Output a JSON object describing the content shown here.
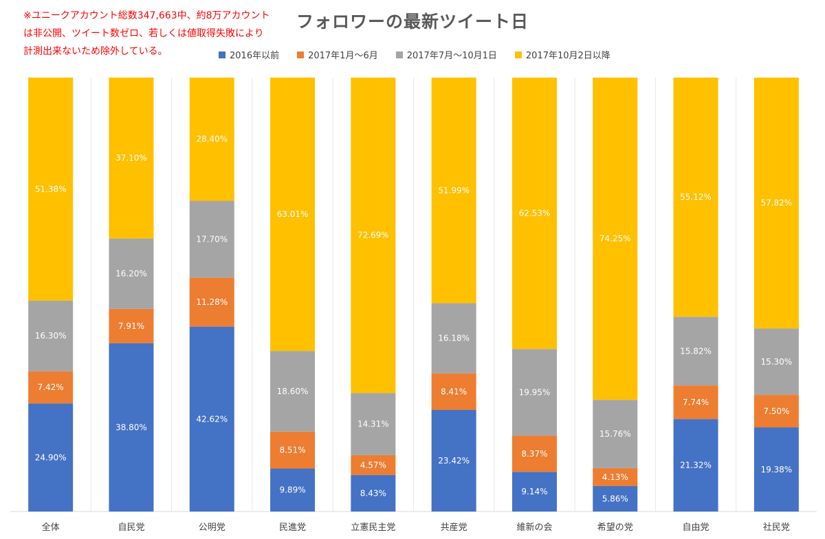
{
  "chart_data": {
    "type": "bar",
    "stacked": true,
    "title": "フォロワーの最新ツイート日",
    "annotation": "※ユニークアカウント総数347,663中、約8万アカウント\nは非公開、ツイート数ゼロ、若しくは値取得失敗により\n計測出来ないため除外している。",
    "legend_position": "top",
    "ylim": [
      0,
      100
    ],
    "grid": false,
    "categories": [
      "全体",
      "自民党",
      "公明党",
      "民進党",
      "立憲民主党",
      "共産党",
      "維新の会",
      "希望の党",
      "自由党",
      "社民党"
    ],
    "series": [
      {
        "name": "2016年以前",
        "color": "#4472c4",
        "values": [
          24.9,
          38.8,
          42.62,
          9.89,
          8.43,
          23.42,
          9.14,
          5.86,
          21.32,
          19.38
        ],
        "labels": [
          "24.90%",
          "38.80%",
          "42.62%",
          "9.89%",
          "8.43%",
          "23.42%",
          "9.14%",
          "5.86%",
          "21.32%",
          "19.38%"
        ]
      },
      {
        "name": "2017年1月～6月",
        "color": "#ed7d31",
        "values": [
          7.42,
          7.91,
          11.28,
          8.51,
          4.57,
          8.41,
          8.37,
          4.13,
          7.74,
          7.5
        ],
        "labels": [
          "7.42%",
          "7.91%",
          "11.28%",
          "8.51%",
          "4.57%",
          "8.41%",
          "8.37%",
          "4.13%",
          "7.74%",
          "7.50%"
        ]
      },
      {
        "name": "2017年7月～10月1日",
        "color": "#a5a5a5",
        "values": [
          16.3,
          16.2,
          17.7,
          18.6,
          14.31,
          16.18,
          19.95,
          15.76,
          15.82,
          15.3
        ],
        "labels": [
          "16.30%",
          "16.20%",
          "17.70%",
          "18.60%",
          "14.31%",
          "16.18%",
          "19.95%",
          "15.76%",
          "15.82%",
          "15.30%"
        ]
      },
      {
        "name": "2017年10月2日以降",
        "color": "#ffc000",
        "values": [
          51.38,
          37.1,
          28.4,
          63.01,
          72.69,
          51.99,
          62.53,
          74.25,
          55.12,
          57.82
        ],
        "labels": [
          "51.38%",
          "37.10%",
          "28.40%",
          "63.01%",
          "72.69%",
          "51.99%",
          "62.53%",
          "74.25%",
          "55.12%",
          "57.82%"
        ]
      }
    ]
  }
}
